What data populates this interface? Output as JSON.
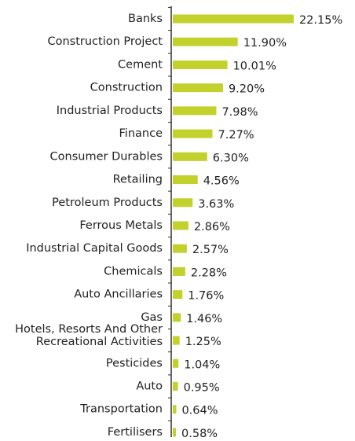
{
  "chart_data": {
    "type": "bar",
    "orientation": "horizontal",
    "color": "#c2d12c",
    "categories": [
      "Banks",
      "Construction Project",
      "Cement",
      "Construction",
      "Industrial Products",
      "Finance",
      "Consumer Durables",
      "Retailing",
      "Petroleum Products",
      "Ferrous Metals",
      "Industrial Capital Goods",
      "Chemicals",
      "Auto Ancillaries",
      "Gas",
      "Hotels, Resorts And Other\nRecreational Activities",
      "Pesticides",
      "Auto",
      "Transportation",
      "Fertilisers"
    ],
    "values": [
      22.15,
      11.9,
      10.01,
      9.2,
      7.98,
      7.27,
      6.3,
      4.56,
      3.63,
      2.86,
      2.57,
      2.28,
      1.76,
      1.46,
      1.25,
      1.04,
      0.95,
      0.64,
      0.58
    ],
    "value_labels": [
      "22.15%",
      "11.90%",
      "10.01%",
      "9.20%",
      "7.98%",
      "7.27%",
      "6.30%",
      "4.56%",
      "3.63%",
      "2.86%",
      "2.57%",
      "2.28%",
      "1.76%",
      "1.46%",
      "1.25%",
      "1.04%",
      "0.95%",
      "0.64%",
      "0.58%"
    ]
  }
}
